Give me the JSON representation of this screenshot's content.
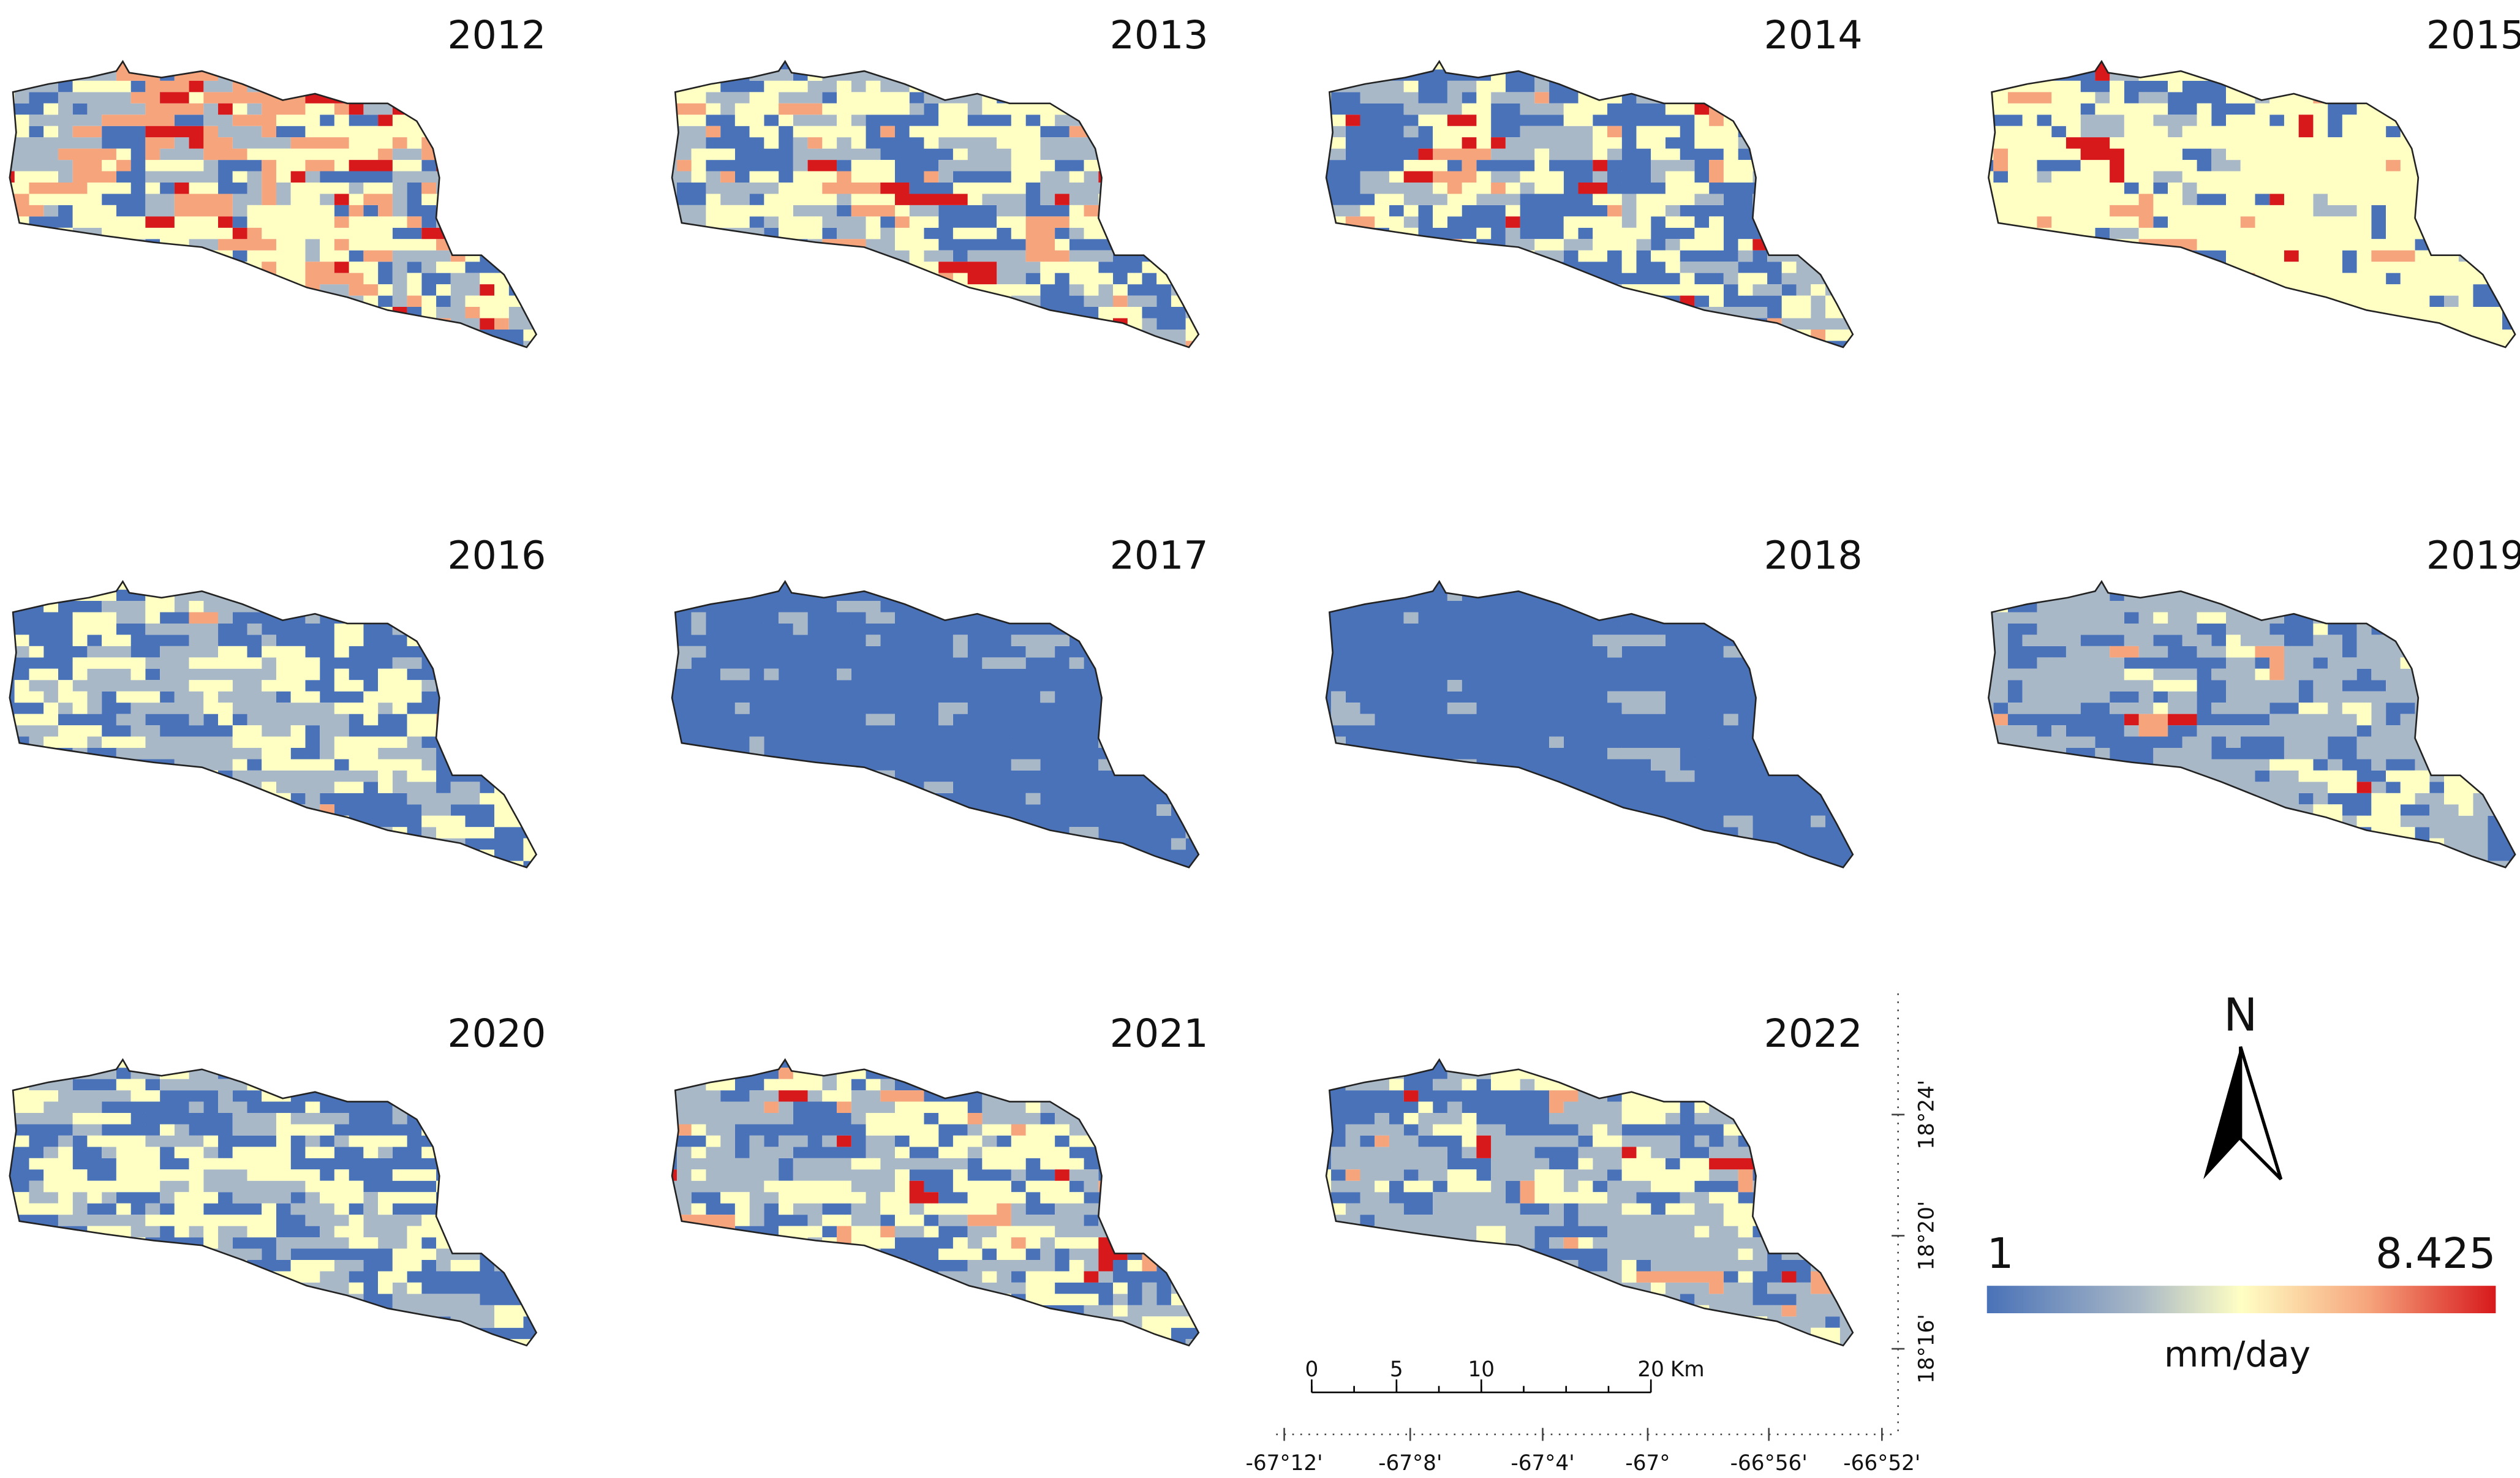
{
  "panels": [
    {
      "year": "2012"
    },
    {
      "year": "2013"
    },
    {
      "year": "2014"
    },
    {
      "year": "2015"
    },
    {
      "year": "2016"
    },
    {
      "year": "2017"
    },
    {
      "year": "2018"
    },
    {
      "year": "2019"
    },
    {
      "year": "2020"
    },
    {
      "year": "2021"
    },
    {
      "year": "2022"
    }
  ],
  "legend": {
    "min": "1",
    "max": "8.425",
    "unit": "mm/day"
  },
  "north": "N",
  "scale_bar": {
    "ticks": [
      0,
      5,
      10,
      20
    ],
    "unit": "Km"
  },
  "longitude_labels": [
    "-67°12'",
    "-67°8'",
    "-67°4'",
    "-67°",
    "-66°56'",
    "-66°52'"
  ],
  "latitude_labels": [
    "18°24'",
    "18°20'",
    "18°16'"
  ]
}
